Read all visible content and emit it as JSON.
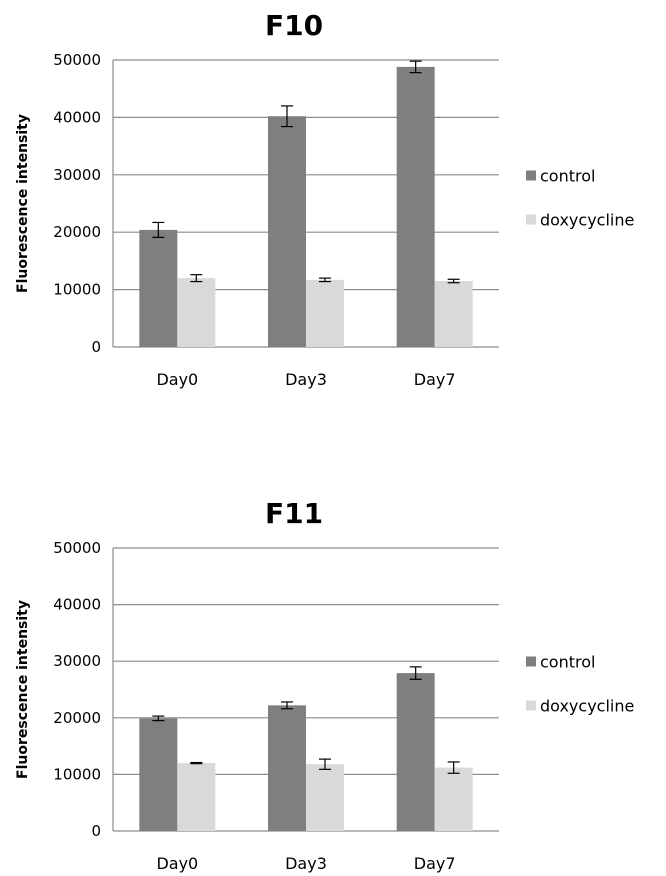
{
  "chart_data": [
    {
      "type": "bar",
      "title": "F10",
      "ylabel": "Fluorescence intensity",
      "xlabel": "",
      "ylim": [
        0,
        50000
      ],
      "yticks": [
        0,
        10000,
        20000,
        30000,
        40000,
        50000
      ],
      "grid": true,
      "legend_position": "right",
      "categories": [
        "Day0",
        "Day3",
        "Day7"
      ],
      "series": [
        {
          "name": "control",
          "color": "#7f7f7f",
          "values": [
            20400,
            40200,
            48800
          ],
          "errors": [
            1300,
            1800,
            1000
          ]
        },
        {
          "name": "doxycycline",
          "color": "#d9d9d9",
          "values": [
            12000,
            11700,
            11500
          ],
          "errors": [
            600,
            300,
            300
          ]
        }
      ]
    },
    {
      "type": "bar",
      "title": "F11",
      "ylabel": "Fluorescence intensity",
      "xlabel": "",
      "ylim": [
        0,
        50000
      ],
      "yticks": [
        0,
        10000,
        20000,
        30000,
        40000,
        50000
      ],
      "grid": true,
      "legend_position": "right",
      "categories": [
        "Day0",
        "Day3",
        "Day7"
      ],
      "series": [
        {
          "name": "control",
          "color": "#7f7f7f",
          "values": [
            19900,
            22200,
            27900
          ],
          "errors": [
            400,
            600,
            1100
          ]
        },
        {
          "name": "doxycycline",
          "color": "#d9d9d9",
          "values": [
            12000,
            11800,
            11200
          ],
          "errors": [
            100,
            900,
            1000
          ]
        }
      ]
    }
  ]
}
